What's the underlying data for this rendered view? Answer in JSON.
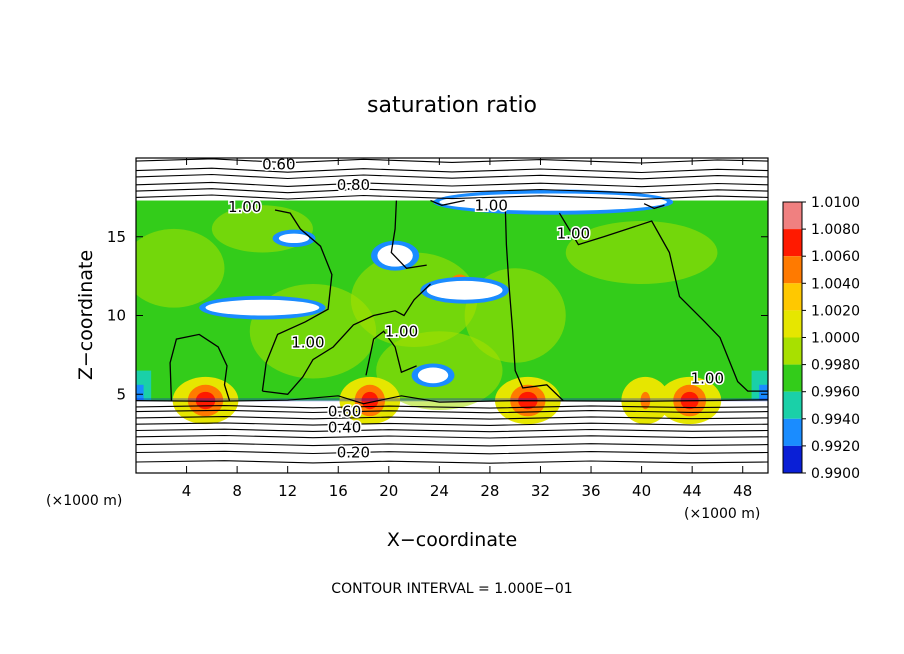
{
  "chart_data": {
    "type": "heatmap",
    "title": "saturation ratio",
    "xlabel": "X−coordinate",
    "ylabel": "Z−coordinate",
    "x_unit": "(×1000 m)",
    "z_unit": "(×1000 m)",
    "xlim": [
      0,
      50
    ],
    "zlim": [
      0,
      20
    ],
    "x_ticks": [
      "4",
      "8",
      "12",
      "16",
      "20",
      "24",
      "28",
      "32",
      "36",
      "40",
      "44",
      "48"
    ],
    "z_ticks": [
      "5",
      "10",
      "15"
    ],
    "footer": "CONTOUR INTERVAL = 1.000E−01",
    "colorbar": {
      "levels": [
        "1.0100",
        "1.0080",
        "1.0060",
        "1.0040",
        "1.0020",
        "1.0000",
        "0.9980",
        "0.9960",
        "0.9940",
        "0.9920",
        "0.9900"
      ],
      "colors": [
        "#f08080",
        "#ff1a00",
        "#ff7a00",
        "#ffc800",
        "#e6e600",
        "#a8e000",
        "#33cc1a",
        "#1ad0a8",
        "#1a8cff",
        "#0a1fd6",
        "#6a1aa8"
      ]
    },
    "contour_labels": [
      {
        "text": "0.60",
        "x": 11.3,
        "z": 19.6
      },
      {
        "text": "0.80",
        "x": 17.2,
        "z": 18.3
      },
      {
        "text": "1.00",
        "x": 8.6,
        "z": 16.9
      },
      {
        "text": "1.00",
        "x": 28.1,
        "z": 17.0
      },
      {
        "text": "1.00",
        "x": 34.6,
        "z": 15.2
      },
      {
        "text": "1.00",
        "x": 13.6,
        "z": 8.3
      },
      {
        "text": "1.00",
        "x": 21.0,
        "z": 9.0
      },
      {
        "text": "1.00",
        "x": 45.2,
        "z": 6.0
      },
      {
        "text": "0.60",
        "x": 16.5,
        "z": 3.9
      },
      {
        "text": "0.40",
        "x": 16.5,
        "z": 2.9
      },
      {
        "text": "0.20",
        "x": 17.2,
        "z": 1.3
      }
    ]
  }
}
